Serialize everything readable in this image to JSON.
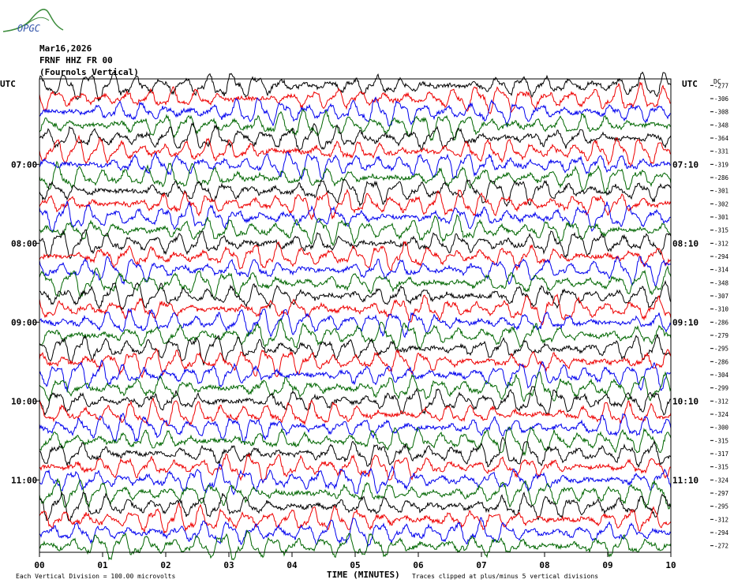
{
  "logo_text": "OPGC",
  "header": {
    "date": "Mar16,2026",
    "station": "FRNF HHZ FR 00",
    "location": "(Fournols Vertical)"
  },
  "chart_data": {
    "type": "line",
    "title": "Mar16,2026",
    "xlabel": "TIME (MINUTES)",
    "x_ticks": [
      "00",
      "01",
      "02",
      "03",
      "04",
      "05",
      "06",
      "07",
      "08",
      "09",
      "10"
    ],
    "xlim": [
      0,
      10
    ],
    "left_axis_label": "UTC",
    "right_axis_label": "UTC",
    "left_time_labels": [
      {
        "row": 6,
        "label": "07:00"
      },
      {
        "row": 12,
        "label": "08:00"
      },
      {
        "row": 18,
        "label": "09:00"
      },
      {
        "row": 24,
        "label": "10:00"
      },
      {
        "row": 30,
        "label": "11:00"
      }
    ],
    "right_time_labels": [
      {
        "row": 6,
        "label": "07:10"
      },
      {
        "row": 12,
        "label": "08:10"
      },
      {
        "row": 18,
        "label": "09:10"
      },
      {
        "row": 24,
        "label": "10:10"
      },
      {
        "row": 30,
        "label": "11:10"
      }
    ],
    "dc_label": "DC",
    "dc_offsets": [
      "-277",
      "-306",
      "-308",
      "-348",
      "-364",
      "-331",
      "-319",
      "-286",
      "-301",
      "-302",
      "-301",
      "-315",
      "-312",
      "-294",
      "-314",
      "-348",
      "-307",
      "-310",
      "-286",
      "-279",
      "-295",
      "-286",
      "-304",
      "-299",
      "-312",
      "-324",
      "-300",
      "-315",
      "-317",
      "-315",
      "-324",
      "-297",
      "-295",
      "-312",
      "-294",
      "-272"
    ],
    "trace_colors": [
      "#000000",
      "#ee0000",
      "#0000ee",
      "#006600"
    ],
    "rows": 36,
    "footer_left": "Each Vertical Division =  100.00 microvolts",
    "footer_right": "Traces clipped at plus/minus 5 vertical divisions"
  }
}
